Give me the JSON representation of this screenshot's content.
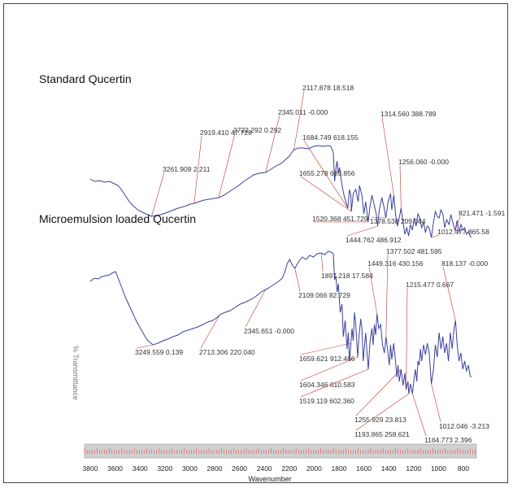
{
  "chart_data": {
    "type": "line",
    "xlabel": "Wavenumber",
    "ylabel": "% Transmittance",
    "xlim": [
      3800,
      650
    ],
    "x_reversed": true,
    "grid": false,
    "x_ticks": [
      3800,
      3600,
      3400,
      3200,
      3000,
      2800,
      2600,
      2400,
      2200,
      2000,
      1800,
      1600,
      1400,
      1200,
      1000,
      800
    ],
    "colors": {
      "line": "#3a3f9e",
      "leader": "#c0392b",
      "ruler": "#d0d0d0",
      "ruler_tick": "#e05050"
    },
    "series": [
      {
        "name": "Standard Qucertin",
        "points": [
          [
            3755,
            52
          ],
          [
            3720,
            55
          ],
          [
            3680,
            54
          ],
          [
            3640,
            56
          ],
          [
            3600,
            55
          ],
          [
            3560,
            58
          ],
          [
            3530,
            60
          ],
          [
            3500,
            66
          ],
          [
            3470,
            73
          ],
          [
            3440,
            80
          ],
          [
            3410,
            85
          ],
          [
            3380,
            89
          ],
          [
            3350,
            92
          ],
          [
            3320,
            94
          ],
          [
            3290,
            96
          ],
          [
            3261,
            98
          ],
          [
            3230,
            97
          ],
          [
            3190,
            96
          ],
          [
            3150,
            94
          ],
          [
            3100,
            91
          ],
          [
            3050,
            88
          ],
          [
            3000,
            86
          ],
          [
            2950,
            83
          ],
          [
            2919,
            82
          ],
          [
            2880,
            80
          ],
          [
            2840,
            78
          ],
          [
            2800,
            77
          ],
          [
            2760,
            76
          ],
          [
            2722,
            75
          ],
          [
            2680,
            72
          ],
          [
            2640,
            68
          ],
          [
            2600,
            64
          ],
          [
            2560,
            60
          ],
          [
            2520,
            55
          ],
          [
            2480,
            51
          ],
          [
            2440,
            47
          ],
          [
            2400,
            45
          ],
          [
            2345,
            44
          ],
          [
            2300,
            40
          ],
          [
            2260,
            36
          ],
          [
            2220,
            33
          ],
          [
            2190,
            29
          ],
          [
            2160,
            25
          ],
          [
            2140,
            21
          ],
          [
            2117,
            16
          ],
          [
            2080,
            14
          ],
          [
            2040,
            14
          ],
          [
            2000,
            15
          ],
          [
            1960,
            12
          ],
          [
            1920,
            11
          ],
          [
            1880,
            12
          ],
          [
            1840,
            11
          ],
          [
            1820,
            12
          ],
          [
            1800,
            20
          ],
          [
            1790,
            55
          ],
          [
            1780,
            40
          ],
          [
            1770,
            30
          ],
          [
            1760,
            45
          ],
          [
            1750,
            38
          ],
          [
            1730,
            60
          ],
          [
            1710,
            75
          ],
          [
            1690,
            85
          ],
          [
            1684,
            88
          ],
          [
            1670,
            65
          ],
          [
            1660,
            72
          ],
          [
            1655,
            92
          ],
          [
            1640,
            70
          ],
          [
            1620,
            65
          ],
          [
            1600,
            80
          ],
          [
            1590,
            60
          ],
          [
            1570,
            72
          ],
          [
            1555,
            95
          ],
          [
            1540,
            80
          ],
          [
            1520,
            105
          ],
          [
            1505,
            85
          ],
          [
            1490,
            72
          ],
          [
            1470,
            85
          ],
          [
            1455,
            95
          ],
          [
            1444,
            110
          ],
          [
            1430,
            90
          ],
          [
            1410,
            75
          ],
          [
            1395,
            85
          ],
          [
            1378,
            100
          ],
          [
            1360,
            80
          ],
          [
            1340,
            70
          ],
          [
            1330,
            90
          ],
          [
            1314,
            72
          ],
          [
            1300,
            95
          ],
          [
            1285,
            110
          ],
          [
            1270,
            100
          ],
          [
            1256,
            88
          ],
          [
            1240,
            105
          ],
          [
            1225,
            120
          ],
          [
            1210,
            112
          ],
          [
            1195,
            122
          ],
          [
            1180,
            108
          ],
          [
            1165,
            115
          ],
          [
            1150,
            100
          ],
          [
            1135,
            110
          ],
          [
            1120,
            95
          ],
          [
            1105,
            100
          ],
          [
            1090,
            112
          ],
          [
            1075,
            105
          ],
          [
            1060,
            118
          ],
          [
            1045,
            110
          ],
          [
            1030,
            112
          ],
          [
            1012,
            124
          ],
          [
            995,
            105
          ],
          [
            980,
            92
          ],
          [
            965,
            98
          ],
          [
            950,
            100
          ],
          [
            935,
            90
          ],
          [
            920,
            95
          ],
          [
            905,
            112
          ],
          [
            890,
            102
          ],
          [
            870,
            108
          ],
          [
            855,
            96
          ],
          [
            840,
            105
          ],
          [
            821,
            116
          ],
          [
            805,
            103
          ],
          [
            790,
            118
          ],
          [
            775,
            108
          ],
          [
            760,
            115
          ],
          [
            745,
            112
          ],
          [
            730,
            120
          ],
          [
            715,
            117
          ],
          [
            700,
            122
          ],
          [
            690,
            124
          ]
        ]
      },
      {
        "name": "Microemulsion loaded Qucertin",
        "points": [
          [
            3755,
            42
          ],
          [
            3720,
            38
          ],
          [
            3690,
            39
          ],
          [
            3660,
            36
          ],
          [
            3630,
            35
          ],
          [
            3600,
            34
          ],
          [
            3570,
            31
          ],
          [
            3550,
            30
          ],
          [
            3530,
            38
          ],
          [
            3500,
            50
          ],
          [
            3470,
            62
          ],
          [
            3440,
            72
          ],
          [
            3410,
            82
          ],
          [
            3380,
            92
          ],
          [
            3350,
            100
          ],
          [
            3320,
            108
          ],
          [
            3290,
            115
          ],
          [
            3249,
            120
          ],
          [
            3210,
            118
          ],
          [
            3170,
            115
          ],
          [
            3130,
            113
          ],
          [
            3090,
            110
          ],
          [
            3050,
            108
          ],
          [
            3010,
            104
          ],
          [
            2970,
            102
          ],
          [
            2930,
            100
          ],
          [
            2890,
            98
          ],
          [
            2850,
            95
          ],
          [
            2810,
            92
          ],
          [
            2770,
            90
          ],
          [
            2730,
            86
          ],
          [
            2713,
            83
          ],
          [
            2670,
            80
          ],
          [
            2630,
            78
          ],
          [
            2590,
            74
          ],
          [
            2550,
            70
          ],
          [
            2500,
            67
          ],
          [
            2460,
            64
          ],
          [
            2420,
            60
          ],
          [
            2380,
            55
          ],
          [
            2345,
            52
          ],
          [
            2320,
            50
          ],
          [
            2280,
            46
          ],
          [
            2240,
            42
          ],
          [
            2210,
            38
          ],
          [
            2190,
            30
          ],
          [
            2170,
            20
          ],
          [
            2150,
            15
          ],
          [
            2130,
            22
          ],
          [
            2109,
            26
          ],
          [
            2080,
            18
          ],
          [
            2050,
            12
          ],
          [
            2020,
            15
          ],
          [
            1990,
            10
          ],
          [
            1960,
            12
          ],
          [
            1930,
            8
          ],
          [
            1900,
            7
          ],
          [
            1870,
            9
          ],
          [
            1840,
            5
          ],
          [
            1820,
            6
          ],
          [
            1800,
            8
          ],
          [
            1790,
            40
          ],
          [
            1780,
            35
          ],
          [
            1770,
            55
          ],
          [
            1760,
            45
          ],
          [
            1745,
            80
          ],
          [
            1730,
            70
          ],
          [
            1720,
            110
          ],
          [
            1705,
            90
          ],
          [
            1690,
            125
          ],
          [
            1680,
            105
          ],
          [
            1670,
            140
          ],
          [
            1659,
            118
          ],
          [
            1650,
            100
          ],
          [
            1640,
            115
          ],
          [
            1630,
            80
          ],
          [
            1620,
            95
          ],
          [
            1604,
            135
          ],
          [
            1595,
            112
          ],
          [
            1580,
            88
          ],
          [
            1570,
            100
          ],
          [
            1560,
            140
          ],
          [
            1550,
            122
          ],
          [
            1540,
            105
          ],
          [
            1530,
            128
          ],
          [
            1519,
            150
          ],
          [
            1505,
            115
          ],
          [
            1490,
            100
          ],
          [
            1480,
            120
          ],
          [
            1470,
            95
          ],
          [
            1460,
            108
          ],
          [
            1449,
            82
          ],
          [
            1435,
            100
          ],
          [
            1420,
            95
          ],
          [
            1405,
            120
          ],
          [
            1390,
            130
          ],
          [
            1377,
            110
          ],
          [
            1365,
            125
          ],
          [
            1350,
            145
          ],
          [
            1340,
            120
          ],
          [
            1330,
            138
          ],
          [
            1315,
            118
          ],
          [
            1300,
            140
          ],
          [
            1290,
            160
          ],
          [
            1280,
            145
          ],
          [
            1270,
            165
          ],
          [
            1255,
            150
          ],
          [
            1240,
            170
          ],
          [
            1225,
            155
          ],
          [
            1215,
            175
          ],
          [
            1200,
            165
          ],
          [
            1193,
            180
          ],
          [
            1180,
            168
          ],
          [
            1164,
            180
          ],
          [
            1150,
            160
          ],
          [
            1140,
            150
          ],
          [
            1130,
            165
          ],
          [
            1120,
            140
          ],
          [
            1110,
            145
          ],
          [
            1100,
            125
          ],
          [
            1090,
            140
          ],
          [
            1075,
            120
          ],
          [
            1060,
            132
          ],
          [
            1045,
            118
          ],
          [
            1030,
            130
          ],
          [
            1012,
            168
          ],
          [
            995,
            150
          ],
          [
            980,
            120
          ],
          [
            965,
            135
          ],
          [
            950,
            105
          ],
          [
            935,
            125
          ],
          [
            920,
            110
          ],
          [
            905,
            130
          ],
          [
            890,
            118
          ],
          [
            875,
            140
          ],
          [
            860,
            105
          ],
          [
            845,
            125
          ],
          [
            830,
            100
          ],
          [
            818,
            90
          ],
          [
            805,
            120
          ],
          [
            790,
            140
          ],
          [
            775,
            130
          ],
          [
            760,
            150
          ],
          [
            745,
            140
          ],
          [
            730,
            152
          ],
          [
            715,
            145
          ],
          [
            700,
            158
          ],
          [
            690,
            160
          ]
        ]
      }
    ],
    "annotations": [
      {
        "series": 0,
        "x": 3261,
        "text": "3261.909 2.211"
      },
      {
        "series": 0,
        "x": 2919,
        "text": "2919.410 47.728"
      },
      {
        "series": 0,
        "x": 2722,
        "text": "2722.292 0.292"
      },
      {
        "series": 0,
        "x": 2345,
        "text": "2345.011 -0.000"
      },
      {
        "series": 0,
        "x": 2117,
        "text": "2117.878 18.518"
      },
      {
        "series": 0,
        "x": 1684,
        "text": "1684.749 618.155"
      },
      {
        "series": 0,
        "x": 1655,
        "text": "1655.278 689.856"
      },
      {
        "series": 0,
        "x": 1520,
        "text": "1520.368 451.729"
      },
      {
        "series": 0,
        "x": 1444,
        "text": "1444.762 486.912"
      },
      {
        "series": 0,
        "x": 1378,
        "text": "1378.538 209.084"
      },
      {
        "series": 0,
        "x": 1314,
        "text": "1314.560 388.789"
      },
      {
        "series": 0,
        "x": 1256,
        "text": "1256.060 -0.000"
      },
      {
        "series": 0,
        "x": 1012,
        "text": "1012.477 865.58"
      },
      {
        "series": 0,
        "x": 821,
        "text": "821.471 -1.591"
      },
      {
        "series": 1,
        "x": 3249,
        "text": "3249.559 0.139"
      },
      {
        "series": 1,
        "x": 2713,
        "text": "2713.306 220.040"
      },
      {
        "series": 1,
        "x": 2345,
        "text": "2345.651 -0.000"
      },
      {
        "series": 1,
        "x": 2109,
        "text": "2109.066 82.729"
      },
      {
        "series": 1,
        "x": 1897,
        "text": "1897.218 17.584"
      },
      {
        "series": 1,
        "x": 1659,
        "text": "1659.621 912.466"
      },
      {
        "series": 1,
        "x": 1604,
        "text": "1604.346 610.583"
      },
      {
        "series": 1,
        "x": 1519,
        "text": "1519.119 602.360"
      },
      {
        "series": 1,
        "x": 1449,
        "text": "1449.316 430.156"
      },
      {
        "series": 1,
        "x": 1377,
        "text": "1377.502 481.595"
      },
      {
        "series": 1,
        "x": 1255,
        "text": "1255.929 23.813"
      },
      {
        "series": 1,
        "x": 1215,
        "text": "1215.477 0.667"
      },
      {
        "series": 1,
        "x": 1193,
        "text": "1193.865 258.621"
      },
      {
        "series": 1,
        "x": 1164,
        "text": "1164.773 2.396"
      },
      {
        "series": 1,
        "x": 1012,
        "text": "1012.046 -3.213"
      },
      {
        "series": 1,
        "x": 818,
        "text": "818.137 -0.000"
      }
    ]
  }
}
